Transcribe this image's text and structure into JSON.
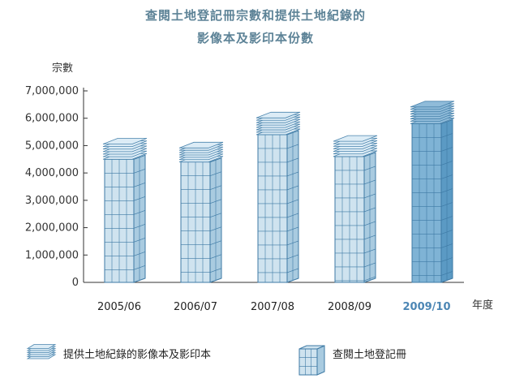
{
  "title_line1": "查閱土地登記冊宗數和提供土地紀錄的",
  "title_line2": "影像本及影印本份數",
  "chart_data": {
    "type": "bar",
    "ylabel": "宗數",
    "xlabel": "年度",
    "ylim": [
      0,
      7000000
    ],
    "yticks": [
      "0",
      "1,000,000",
      "2,000,000",
      "3,000,000",
      "4,000,000",
      "5,000,000",
      "6,000,000",
      "7,000,000"
    ],
    "categories": [
      "2005/06",
      "2006/07",
      "2007/08",
      "2008/09",
      "2009/10"
    ],
    "highlight_category": "2009/10",
    "series": [
      {
        "name": "查閱土地登記冊",
        "values": [
          4500000,
          4400000,
          5400000,
          4600000,
          5800000
        ]
      },
      {
        "name": "提供土地紀錄的影像本及影印本",
        "values": [
          650000,
          600000,
          700000,
          650000,
          700000
        ]
      }
    ],
    "stacked": true,
    "legend_position": "bottom",
    "colors": {
      "building_face": "#cfe3ef",
      "building_side": "#a9cbe0",
      "building_highlight_face": "#7fb3d5",
      "building_highlight_side": "#5b9ac4",
      "paper": "#dcecf6",
      "paper_stroke": "#4a84ad",
      "grid_line": "#3e7aa5"
    }
  },
  "legend": {
    "papers_label": "提供土地紀錄的影像本及影印本",
    "building_label": "查閱土地登記冊"
  }
}
